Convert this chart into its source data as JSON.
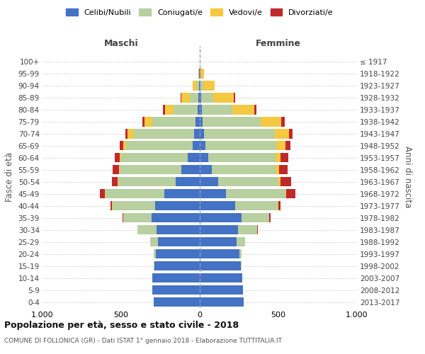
{
  "age_groups": [
    "0-4",
    "5-9",
    "10-14",
    "15-19",
    "20-24",
    "25-29",
    "30-34",
    "35-39",
    "40-44",
    "45-49",
    "50-54",
    "55-59",
    "60-64",
    "65-69",
    "70-74",
    "75-79",
    "80-84",
    "85-89",
    "90-94",
    "95-99",
    "100+"
  ],
  "birth_years": [
    "2013-2017",
    "2008-2012",
    "2003-2007",
    "1998-2002",
    "1993-1997",
    "1988-1992",
    "1983-1987",
    "1978-1982",
    "1973-1977",
    "1968-1972",
    "1963-1967",
    "1958-1962",
    "1953-1957",
    "1948-1952",
    "1943-1947",
    "1938-1942",
    "1933-1937",
    "1928-1932",
    "1923-1927",
    "1918-1922",
    "≤ 1917"
  ],
  "colors": {
    "celibe": "#4472c4",
    "coniugato": "#b8cfa0",
    "vedovo": "#f5c842",
    "divorziato": "#c0292a"
  },
  "maschi": {
    "celibe": [
      295,
      300,
      300,
      290,
      280,
      265,
      275,
      305,
      285,
      225,
      155,
      115,
      75,
      45,
      35,
      25,
      15,
      8,
      4,
      3,
      2
    ],
    "coniugato": [
      0,
      0,
      2,
      5,
      15,
      50,
      120,
      180,
      270,
      375,
      365,
      395,
      425,
      425,
      385,
      275,
      150,
      55,
      15,
      2,
      0
    ],
    "vedovo": [
      0,
      0,
      0,
      0,
      0,
      0,
      0,
      1,
      2,
      3,
      4,
      5,
      10,
      18,
      40,
      50,
      55,
      55,
      25,
      5,
      0
    ],
    "divorziato": [
      0,
      0,
      0,
      0,
      0,
      0,
      2,
      5,
      10,
      30,
      35,
      40,
      30,
      20,
      15,
      15,
      15,
      5,
      2,
      0,
      0
    ]
  },
  "femmine": {
    "nubile": [
      280,
      275,
      270,
      260,
      250,
      235,
      245,
      265,
      225,
      165,
      115,
      75,
      55,
      38,
      28,
      18,
      12,
      8,
      4,
      3,
      2
    ],
    "coniugata": [
      0,
      0,
      2,
      5,
      18,
      55,
      120,
      175,
      270,
      378,
      385,
      408,
      428,
      448,
      448,
      368,
      195,
      78,
      20,
      3,
      0
    ],
    "vedova": [
      0,
      0,
      0,
      0,
      0,
      0,
      0,
      2,
      4,
      5,
      15,
      20,
      30,
      60,
      90,
      130,
      140,
      130,
      70,
      20,
      0
    ],
    "divorziata": [
      0,
      0,
      0,
      0,
      0,
      0,
      3,
      8,
      15,
      60,
      65,
      55,
      50,
      30,
      25,
      25,
      15,
      8,
      2,
      0,
      0
    ]
  },
  "title": "Popolazione per età, sesso e stato civile - 2018",
  "subtitle": "COMUNE DI FOLLONICA (GR) - Dati ISTAT 1° gennaio 2018 - Elaborazione TUTTITALIA.IT",
  "xlabel_maschi": "Maschi",
  "xlabel_femmine": "Femmine",
  "ylabel": "Fasce di età",
  "ylabel_right": "Anni di nascita",
  "xlim": 1000,
  "legend_labels": [
    "Celibi/Nubili",
    "Coniugati/e",
    "Vedovi/e",
    "Divorziati/e"
  ]
}
